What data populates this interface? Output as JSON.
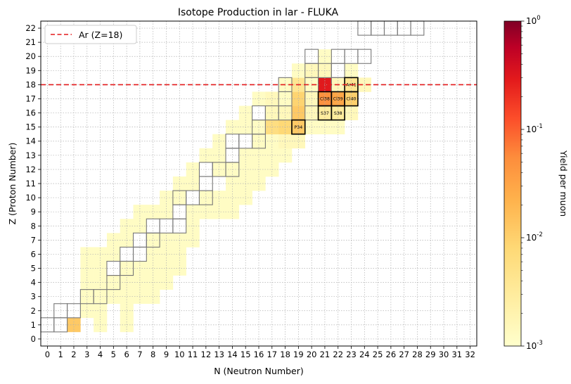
{
  "chart_data": {
    "type": "heatmap",
    "title": "Isotope Production in lar - FLUKA",
    "xlabel": "N (Neutron Number)",
    "ylabel": "Z (Proton Number)",
    "xlim": [
      -0.5,
      32.5
    ],
    "ylim": [
      -0.5,
      22.5
    ],
    "x_ticks": [
      0,
      1,
      2,
      3,
      4,
      5,
      6,
      7,
      8,
      9,
      10,
      11,
      12,
      13,
      14,
      15,
      16,
      17,
      18,
      19,
      20,
      21,
      22,
      23,
      24,
      25,
      26,
      27,
      28,
      29,
      30,
      31,
      32
    ],
    "y_ticks": [
      0,
      1,
      2,
      3,
      4,
      5,
      6,
      7,
      8,
      9,
      10,
      11,
      12,
      13,
      14,
      15,
      16,
      17,
      18,
      19,
      20,
      21,
      22
    ],
    "grid": true,
    "color_scale": {
      "type": "log",
      "min": 0.001,
      "max": 1,
      "colormap": "YlOrRd",
      "label": "Yield per muon",
      "tick_labels": [
        "10^0",
        "10^-1",
        "10^-2",
        "10^-3"
      ],
      "tick_values": [
        1,
        0.1,
        0.01,
        0.001
      ]
    },
    "reference_line": {
      "axis": "y",
      "value": 18,
      "color": "#e41a1c",
      "style": "dashed",
      "label": "Ar (Z=18)"
    },
    "legend": {
      "placement": "top-left",
      "entries": [
        "Ar (Z=18)"
      ]
    },
    "yield_cells": [
      {
        "n": 2,
        "z": 1,
        "v": 0.012
      },
      {
        "n": 3,
        "z": 2,
        "v": 0.0012
      },
      {
        "n": 3,
        "z": 3,
        "v": 0.0012
      },
      {
        "n": 4,
        "z": 3,
        "v": 0.0012
      },
      {
        "n": 4,
        "z": 2,
        "v": 0.0012
      },
      {
        "n": 4,
        "z": 1,
        "v": 0.0012
      },
      {
        "n": 5,
        "z": 3,
        "v": 0.0012
      },
      {
        "n": 5,
        "z": 4,
        "v": 0.0012
      },
      {
        "n": 3,
        "z": 4,
        "v": 0.0012
      },
      {
        "n": 3,
        "z": 5,
        "v": 0.0012
      },
      {
        "n": 3,
        "z": 6,
        "v": 0.0012
      },
      {
        "n": 4,
        "z": 4,
        "v": 0.0012
      },
      {
        "n": 4,
        "z": 5,
        "v": 0.0012
      },
      {
        "n": 4,
        "z": 6,
        "v": 0.0012
      },
      {
        "n": 5,
        "z": 6,
        "v": 0.0012
      },
      {
        "n": 5,
        "z": 7,
        "v": 0.0012
      },
      {
        "n": 6,
        "z": 3,
        "v": 0.0012
      },
      {
        "n": 6,
        "z": 2,
        "v": 0.0012
      },
      {
        "n": 6,
        "z": 1,
        "v": 0.0012
      },
      {
        "n": 6,
        "z": 4,
        "v": 0.0012
      },
      {
        "n": 6,
        "z": 5,
        "v": 0.0012
      },
      {
        "n": 6,
        "z": 7,
        "v": 0.0012
      },
      {
        "n": 6,
        "z": 8,
        "v": 0.0012
      },
      {
        "n": 7,
        "z": 3,
        "v": 0.0012
      },
      {
        "n": 7,
        "z": 4,
        "v": 0.0012
      },
      {
        "n": 7,
        "z": 5,
        "v": 0.0012
      },
      {
        "n": 7,
        "z": 8,
        "v": 0.0012
      },
      {
        "n": 7,
        "z": 9,
        "v": 0.0012
      },
      {
        "n": 8,
        "z": 3,
        "v": 0.0012
      },
      {
        "n": 8,
        "z": 4,
        "v": 0.0012
      },
      {
        "n": 8,
        "z": 5,
        "v": 0.0012
      },
      {
        "n": 8,
        "z": 6,
        "v": 0.0012
      },
      {
        "n": 8,
        "z": 7,
        "v": 0.0012
      },
      {
        "n": 8,
        "z": 9,
        "v": 0.0012
      },
      {
        "n": 9,
        "z": 4,
        "v": 0.0012
      },
      {
        "n": 9,
        "z": 5,
        "v": 0.0012
      },
      {
        "n": 9,
        "z": 6,
        "v": 0.0012
      },
      {
        "n": 9,
        "z": 7,
        "v": 0.0012
      },
      {
        "n": 9,
        "z": 9,
        "v": 0.0012
      },
      {
        "n": 9,
        "z": 10,
        "v": 0.0012
      },
      {
        "n": 10,
        "z": 5,
        "v": 0.0012
      },
      {
        "n": 10,
        "z": 6,
        "v": 0.0012
      },
      {
        "n": 10,
        "z": 7,
        "v": 0.0012
      },
      {
        "n": 10,
        "z": 10,
        "v": 0.0012
      },
      {
        "n": 10,
        "z": 11,
        "v": 0.0012
      },
      {
        "n": 11,
        "z": 7,
        "v": 0.0012
      },
      {
        "n": 11,
        "z": 8,
        "v": 0.0012
      },
      {
        "n": 11,
        "z": 9,
        "v": 0.0012
      },
      {
        "n": 11,
        "z": 11,
        "v": 0.0012
      },
      {
        "n": 11,
        "z": 12,
        "v": 0.0012
      },
      {
        "n": 12,
        "z": 9,
        "v": 0.0012
      },
      {
        "n": 12,
        "z": 10,
        "v": 0.0012
      },
      {
        "n": 12,
        "z": 13,
        "v": 0.0012
      },
      {
        "n": 13,
        "z": 9,
        "v": 0.0012
      },
      {
        "n": 13,
        "z": 10,
        "v": 0.0012
      },
      {
        "n": 13,
        "z": 12,
        "v": 0.0012
      },
      {
        "n": 13,
        "z": 13,
        "v": 0.0012
      },
      {
        "n": 13,
        "z": 14,
        "v": 0.0012
      },
      {
        "n": 14,
        "z": 9,
        "v": 0.0012
      },
      {
        "n": 14,
        "z": 10,
        "v": 0.0012
      },
      {
        "n": 14,
        "z": 11,
        "v": 0.0012
      },
      {
        "n": 14,
        "z": 12,
        "v": 0.0012
      },
      {
        "n": 14,
        "z": 15,
        "v": 0.0012
      },
      {
        "n": 15,
        "z": 10,
        "v": 0.0012
      },
      {
        "n": 15,
        "z": 11,
        "v": 0.0012
      },
      {
        "n": 15,
        "z": 12,
        "v": 0.0012
      },
      {
        "n": 15,
        "z": 13,
        "v": 0.0012
      },
      {
        "n": 15,
        "z": 15,
        "v": 0.0012
      },
      {
        "n": 15,
        "z": 16,
        "v": 0.0012
      },
      {
        "n": 16,
        "z": 11,
        "v": 0.0012
      },
      {
        "n": 16,
        "z": 12,
        "v": 0.0012
      },
      {
        "n": 16,
        "z": 13,
        "v": 0.0012
      },
      {
        "n": 16,
        "z": 14,
        "v": 0.0012
      },
      {
        "n": 16,
        "z": 15,
        "v": 0.0012
      },
      {
        "n": 16,
        "z": 17,
        "v": 0.0012
      },
      {
        "n": 17,
        "z": 12,
        "v": 0.0012
      },
      {
        "n": 17,
        "z": 13,
        "v": 0.0012
      },
      {
        "n": 17,
        "z": 14,
        "v": 0.0012
      },
      {
        "n": 17,
        "z": 15,
        "v": 0.006
      },
      {
        "n": 17,
        "z": 16,
        "v": 0.0015
      },
      {
        "n": 17,
        "z": 17,
        "v": 0.0015
      },
      {
        "n": 18,
        "z": 13,
        "v": 0.0012
      },
      {
        "n": 18,
        "z": 14,
        "v": 0.0015
      },
      {
        "n": 18,
        "z": 15,
        "v": 0.008
      },
      {
        "n": 18,
        "z": 16,
        "v": 0.0015
      },
      {
        "n": 18,
        "z": 17,
        "v": 0.0012
      },
      {
        "n": 18,
        "z": 18,
        "v": 0.0012
      },
      {
        "n": 19,
        "z": 14,
        "v": 0.0015
      },
      {
        "n": 19,
        "z": 15,
        "v": 0.012
      },
      {
        "n": 19,
        "z": 16,
        "v": 0.012
      },
      {
        "n": 19,
        "z": 17,
        "v": 0.009
      },
      {
        "n": 19,
        "z": 18,
        "v": 0.004
      },
      {
        "n": 19,
        "z": 19,
        "v": 0.0012
      },
      {
        "n": 20,
        "z": 15,
        "v": 0.0012
      },
      {
        "n": 20,
        "z": 16,
        "v": 0.0015
      },
      {
        "n": 20,
        "z": 17,
        "v": 0.0015
      },
      {
        "n": 20,
        "z": 18,
        "v": 0.0012
      },
      {
        "n": 20,
        "z": 19,
        "v": 0.0015
      },
      {
        "n": 21,
        "z": 15,
        "v": 0.0012
      },
      {
        "n": 21,
        "z": 16,
        "v": 0.003
      },
      {
        "n": 21,
        "z": 17,
        "v": 0.05
      },
      {
        "n": 21,
        "z": 18,
        "v": 0.3
      },
      {
        "n": 21,
        "z": 19,
        "v": 0.0015
      },
      {
        "n": 21,
        "z": 20,
        "v": 0.0012
      },
      {
        "n": 22,
        "z": 16,
        "v": 0.003
      },
      {
        "n": 22,
        "z": 17,
        "v": 0.03
      },
      {
        "n": 22,
        "z": 18,
        "v": 0.0015
      },
      {
        "n": 22,
        "z": 15,
        "v": 0.0012
      },
      {
        "n": 23,
        "z": 16,
        "v": 0.0015
      },
      {
        "n": 23,
        "z": 17,
        "v": 0.01
      },
      {
        "n": 23,
        "z": 18,
        "v": 0.004
      },
      {
        "n": 23,
        "z": 19,
        "v": 0.0012
      },
      {
        "n": 24,
        "z": 18,
        "v": 0.0015
      }
    ],
    "stable_isotopes": [
      {
        "n": 0,
        "z": 1
      },
      {
        "n": 1,
        "z": 1
      },
      {
        "n": 1,
        "z": 2
      },
      {
        "n": 2,
        "z": 2
      },
      {
        "n": 3,
        "z": 3
      },
      {
        "n": 4,
        "z": 3
      },
      {
        "n": 5,
        "z": 4
      },
      {
        "n": 5,
        "z": 5
      },
      {
        "n": 6,
        "z": 5
      },
      {
        "n": 6,
        "z": 6
      },
      {
        "n": 7,
        "z": 6
      },
      {
        "n": 7,
        "z": 7
      },
      {
        "n": 8,
        "z": 7
      },
      {
        "n": 8,
        "z": 8
      },
      {
        "n": 9,
        "z": 8
      },
      {
        "n": 10,
        "z": 8
      },
      {
        "n": 10,
        "z": 9
      },
      {
        "n": 10,
        "z": 10
      },
      {
        "n": 11,
        "z": 10
      },
      {
        "n": 12,
        "z": 10
      },
      {
        "n": 12,
        "z": 11
      },
      {
        "n": 12,
        "z": 12
      },
      {
        "n": 13,
        "z": 12
      },
      {
        "n": 14,
        "z": 12
      },
      {
        "n": 14,
        "z": 13
      },
      {
        "n": 14,
        "z": 14
      },
      {
        "n": 15,
        "z": 14
      },
      {
        "n": 16,
        "z": 14
      },
      {
        "n": 16,
        "z": 15
      },
      {
        "n": 16,
        "z": 16
      },
      {
        "n": 17,
        "z": 16
      },
      {
        "n": 18,
        "z": 16
      },
      {
        "n": 20,
        "z": 16
      },
      {
        "n": 18,
        "z": 17
      },
      {
        "n": 20,
        "z": 17
      },
      {
        "n": 18,
        "z": 18
      },
      {
        "n": 20,
        "z": 18
      },
      {
        "n": 22,
        "z": 18
      },
      {
        "n": 20,
        "z": 19
      },
      {
        "n": 21,
        "z": 19
      },
      {
        "n": 22,
        "z": 19
      },
      {
        "n": 20,
        "z": 20
      },
      {
        "n": 22,
        "z": 20
      },
      {
        "n": 23,
        "z": 20
      },
      {
        "n": 24,
        "z": 20
      },
      {
        "n": 24,
        "z": 22
      },
      {
        "n": 25,
        "z": 22
      },
      {
        "n": 26,
        "z": 22
      },
      {
        "n": 27,
        "z": 22
      },
      {
        "n": 28,
        "z": 22
      }
    ],
    "highlighted_isotopes": [
      {
        "n": 19,
        "z": 15,
        "label": "P34"
      },
      {
        "n": 21,
        "z": 16,
        "label": "S37"
      },
      {
        "n": 22,
        "z": 16,
        "label": "S38"
      },
      {
        "n": 21,
        "z": 17,
        "label": "Cl38"
      },
      {
        "n": 22,
        "z": 17,
        "label": "Cl39"
      },
      {
        "n": 23,
        "z": 17,
        "label": "Cl40"
      },
      {
        "n": 23,
        "z": 18,
        "label": "Ar41"
      }
    ]
  }
}
